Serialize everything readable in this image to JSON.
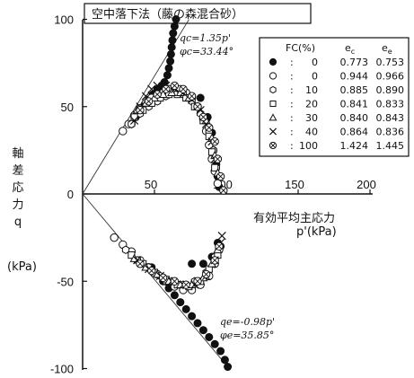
{
  "chart_data": {
    "type": "scatter",
    "title": "空中落下法（藤の森混合砂）",
    "xlabel_line1": "有効平均主応力",
    "xlabel_line2": "p'(kPa)",
    "ylabel_chars": [
      "軸",
      "差",
      "応",
      "力",
      "q"
    ],
    "yunit": "(kPa)",
    "xlim": [
      0,
      200
    ],
    "ylim": [
      -100,
      100
    ],
    "xticks": [
      50,
      100,
      150,
      200
    ],
    "yticks": [
      100,
      50,
      0,
      -50,
      -100
    ],
    "grid": false,
    "legend_position": "top-right",
    "legend": {
      "headers": {
        "fc": "FC(%)",
        "ec": "e",
        "ec_sub": "c",
        "ee": "e",
        "ee_sub": "e"
      },
      "rows": [
        {
          "marker": "filled-circle",
          "fc": "0",
          "ec": "0.773",
          "ee": "0.753"
        },
        {
          "marker": "open-circle",
          "fc": "0",
          "ec": "0.944",
          "ee": "0.966"
        },
        {
          "marker": "open-hexagon",
          "fc": "10",
          "ec": "0.885",
          "ee": "0.890"
        },
        {
          "marker": "open-square",
          "fc": "20",
          "ec": "0.841",
          "ee": "0.833"
        },
        {
          "marker": "open-triangle",
          "fc": "30",
          "ec": "0.840",
          "ee": "0.843"
        },
        {
          "marker": "cross",
          "fc": "40",
          "ec": "0.864",
          "ee": "0.836"
        },
        {
          "marker": "circled-cross",
          "fc": "100",
          "ec": "1.424",
          "ee": "1.445"
        }
      ]
    },
    "annotations": {
      "compression_line": "qc=1.35p'",
      "compression_angle": "φc=33.44°",
      "extension_line": "qe=-0.98p'",
      "extension_angle": "φe=35.85°"
    },
    "reference_lines": [
      {
        "name": "compression-line",
        "slope": 1.35,
        "x_range": [
          0,
          74
        ]
      },
      {
        "name": "extension-line",
        "slope": -0.98,
        "x_range": [
          0,
          102
        ]
      }
    ],
    "series": [
      {
        "name": "FC=0 (e=0.773)",
        "marker": "filled-circle",
        "points": [
          [
            65,
            100
          ],
          [
            64,
            96
          ],
          [
            63,
            92
          ],
          [
            62.5,
            88
          ],
          [
            62,
            84
          ],
          [
            61.5,
            80
          ],
          [
            61,
            76
          ],
          [
            60,
            72
          ],
          [
            59,
            68
          ],
          [
            57,
            64
          ],
          [
            55,
            62
          ],
          [
            52,
            60
          ],
          [
            49,
            57
          ],
          [
            46,
            54
          ],
          [
            43,
            51
          ],
          [
            40,
            48
          ],
          [
            37,
            44
          ],
          [
            34,
            40
          ],
          [
            82,
            55
          ],
          [
            87,
            44
          ],
          [
            90,
            35
          ],
          [
            91,
            25
          ],
          [
            93,
            17
          ],
          [
            94,
            10
          ],
          [
            95,
            4
          ],
          [
            48,
            -42
          ],
          [
            52,
            -46
          ],
          [
            56,
            -50
          ],
          [
            60,
            -54
          ],
          [
            64,
            -58
          ],
          [
            68,
            -62
          ],
          [
            72,
            -66
          ],
          [
            76,
            -70
          ],
          [
            80,
            -74
          ],
          [
            84,
            -78
          ],
          [
            88,
            -82
          ],
          [
            92,
            -86
          ],
          [
            96,
            -90
          ],
          [
            99,
            -95
          ],
          [
            101,
            -99
          ],
          [
            76,
            -40
          ],
          [
            84,
            -40
          ],
          [
            90,
            -36
          ],
          [
            94,
            -28
          ],
          [
            96,
            -30
          ]
        ]
      },
      {
        "name": "FC=0 (e=0.944)",
        "marker": "open-circle",
        "points": [
          [
            28,
            36
          ],
          [
            32,
            40
          ],
          [
            36,
            45
          ],
          [
            40,
            49
          ],
          [
            44,
            52
          ],
          [
            48,
            55
          ],
          [
            52,
            56
          ],
          [
            56,
            58
          ],
          [
            60,
            60
          ],
          [
            64,
            61
          ],
          [
            68,
            60
          ],
          [
            72,
            58
          ],
          [
            76,
            55
          ],
          [
            80,
            50
          ],
          [
            84,
            43
          ],
          [
            86,
            36
          ],
          [
            88,
            28
          ],
          [
            90,
            20
          ],
          [
            92,
            13
          ],
          [
            94,
            6
          ],
          [
            22,
            -25
          ],
          [
            28,
            -29
          ],
          [
            34,
            -33
          ],
          [
            40,
            -38
          ],
          [
            46,
            -42
          ],
          [
            52,
            -46
          ],
          [
            58,
            -50
          ],
          [
            64,
            -53
          ],
          [
            70,
            -55
          ],
          [
            76,
            -55
          ],
          [
            82,
            -52
          ],
          [
            88,
            -47
          ],
          [
            92,
            -40
          ],
          [
            95,
            -32
          ]
        ]
      },
      {
        "name": "FC=10",
        "marker": "open-hexagon",
        "points": [
          [
            34,
            40
          ],
          [
            40,
            46
          ],
          [
            46,
            50
          ],
          [
            52,
            53
          ],
          [
            58,
            56
          ],
          [
            64,
            58
          ],
          [
            70,
            57
          ],
          [
            76,
            53
          ],
          [
            82,
            46
          ],
          [
            88,
            36
          ],
          [
            91,
            25
          ],
          [
            93,
            15
          ],
          [
            30,
            -32
          ],
          [
            38,
            -38
          ],
          [
            46,
            -42
          ],
          [
            54,
            -47
          ],
          [
            62,
            -50
          ],
          [
            70,
            -52
          ],
          [
            78,
            -50
          ],
          [
            86,
            -45
          ],
          [
            92,
            -36
          ]
        ]
      },
      {
        "name": "FC=20",
        "marker": "open-square",
        "points": [
          [
            36,
            44
          ],
          [
            42,
            48
          ],
          [
            48,
            52
          ],
          [
            54,
            55
          ],
          [
            60,
            57
          ],
          [
            66,
            57
          ],
          [
            72,
            55
          ],
          [
            78,
            50
          ],
          [
            84,
            42
          ],
          [
            88,
            33
          ],
          [
            90,
            24
          ],
          [
            92,
            15
          ],
          [
            34,
            -35
          ],
          [
            42,
            -40
          ],
          [
            50,
            -45
          ],
          [
            58,
            -49
          ],
          [
            66,
            -52
          ],
          [
            74,
            -53
          ],
          [
            82,
            -50
          ],
          [
            88,
            -43
          ],
          [
            94,
            -35
          ]
        ]
      },
      {
        "name": "FC=30",
        "marker": "open-triangle",
        "points": [
          [
            38,
            48
          ],
          [
            44,
            52
          ],
          [
            50,
            55
          ],
          [
            56,
            57
          ],
          [
            62,
            58
          ],
          [
            68,
            58
          ],
          [
            74,
            55
          ],
          [
            80,
            50
          ],
          [
            86,
            42
          ],
          [
            90,
            32
          ],
          [
            92,
            22
          ],
          [
            94,
            12
          ],
          [
            36,
            -37
          ],
          [
            44,
            -42
          ],
          [
            52,
            -46
          ],
          [
            60,
            -50
          ],
          [
            68,
            -52
          ],
          [
            76,
            -52
          ],
          [
            84,
            -48
          ],
          [
            90,
            -40
          ],
          [
            94,
            -32
          ]
        ]
      },
      {
        "name": "FC=40",
        "marker": "cross",
        "points": [
          [
            36,
            42
          ],
          [
            40,
            50
          ],
          [
            44,
            56
          ],
          [
            48,
            60
          ],
          [
            52,
            62
          ],
          [
            58,
            62
          ],
          [
            64,
            60
          ],
          [
            70,
            58
          ],
          [
            76,
            54
          ],
          [
            82,
            48
          ],
          [
            86,
            40
          ],
          [
            90,
            30
          ],
          [
            92,
            20
          ],
          [
            38,
            -38
          ],
          [
            46,
            -43
          ],
          [
            54,
            -47
          ],
          [
            62,
            -50
          ],
          [
            70,
            -52
          ],
          [
            78,
            -52
          ],
          [
            86,
            -47
          ],
          [
            92,
            -38
          ],
          [
            96,
            -28
          ],
          [
            97,
            -24
          ]
        ]
      },
      {
        "name": "FC=100",
        "marker": "circled-cross",
        "points": [
          [
            40,
            48
          ],
          [
            46,
            53
          ],
          [
            52,
            57
          ],
          [
            58,
            60
          ],
          [
            64,
            62
          ],
          [
            70,
            60
          ],
          [
            76,
            56
          ],
          [
            80,
            50
          ],
          [
            84,
            44
          ],
          [
            88,
            38
          ],
          [
            92,
            30
          ],
          [
            94,
            20
          ],
          [
            96,
            10
          ],
          [
            98,
            2
          ],
          [
            40,
            -40
          ],
          [
            48,
            -44
          ],
          [
            56,
            -48
          ],
          [
            64,
            -50
          ],
          [
            72,
            -52
          ],
          [
            80,
            -50
          ],
          [
            86,
            -46
          ],
          [
            92,
            -38
          ],
          [
            95,
            -30
          ]
        ]
      }
    ]
  }
}
